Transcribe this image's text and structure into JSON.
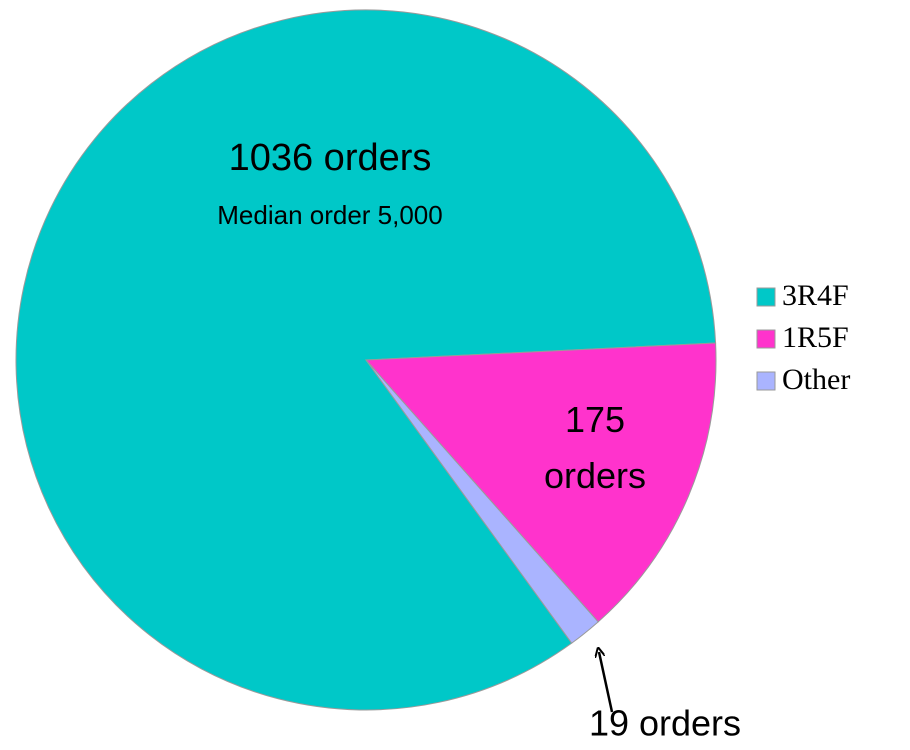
{
  "chart_data": {
    "type": "pie",
    "categories": [
      "3R4F",
      "1R5F",
      "Other"
    ],
    "values": [
      1036,
      175,
      19
    ],
    "value_labels": [
      "1036 orders",
      "175 orders",
      "19 orders"
    ],
    "colors": [
      "#00c8c8",
      "#ff33cc",
      "#aab4ff"
    ],
    "annotations": [
      "Median order 5,000"
    ],
    "legend": "right"
  }
}
